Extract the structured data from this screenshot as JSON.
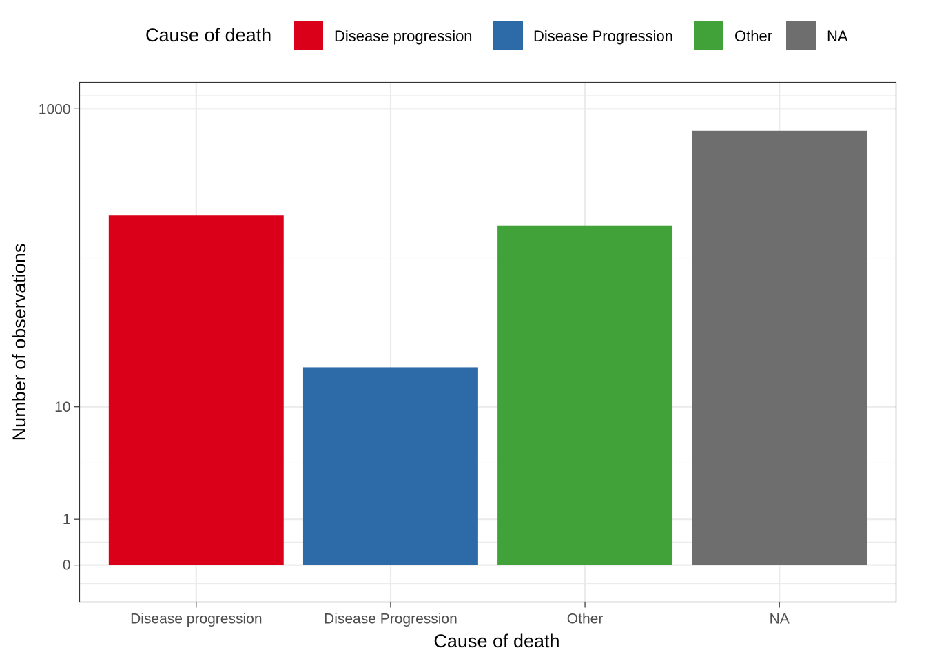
{
  "legend": {
    "title": "Cause of death",
    "entries": [
      {
        "label": "Disease progression",
        "color": "#DB0019"
      },
      {
        "label": "Disease Progression",
        "color": "#2D6AA8"
      },
      {
        "label": "Other",
        "color": "#42A23A"
      },
      {
        "label": "NA",
        "color": "#6E6E6E"
      }
    ]
  },
  "chart_data": {
    "type": "bar",
    "xlabel": "Cause of death",
    "ylabel": "Number of observations",
    "categories": [
      "Disease progression",
      "Disease Progression",
      "Other",
      "NA"
    ],
    "values": [
      200,
      19,
      170,
      720
    ],
    "colors": [
      "#DB0019",
      "#2D6AA8",
      "#42A23A",
      "#6E6E6E"
    ],
    "y_scale": "pseudo-log (log10(1+y))",
    "y_ticks": [
      0,
      1,
      10,
      1000
    ],
    "y_tick_labels": [
      "0",
      "1",
      "10",
      "1000"
    ],
    "ylim": [
      -0.43,
      1500
    ],
    "grid": true,
    "legend_position": "top"
  }
}
